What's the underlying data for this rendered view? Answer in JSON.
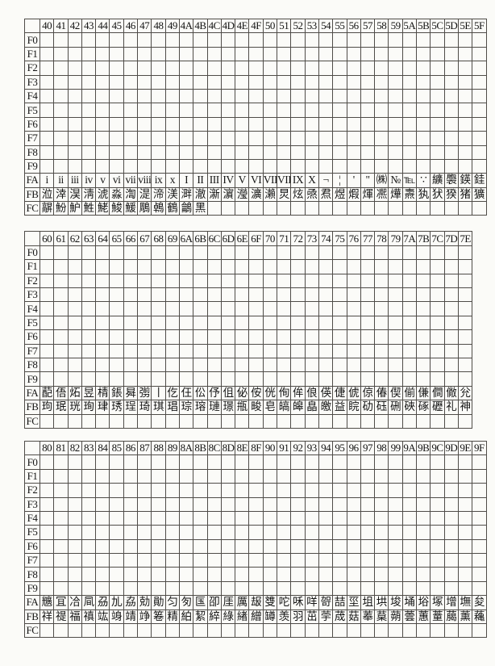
{
  "page": {
    "background": "#fbfbf8",
    "ink": "#1b1b1b",
    "grid_color": "#4f4c48",
    "description": "Shift-JIS IBM extended character code table, rows F0-FC"
  },
  "row_labels": [
    "F0",
    "F1",
    "F2",
    "F3",
    "F4",
    "F5",
    "F6",
    "F7",
    "F8",
    "F9",
    "FA",
    "FB",
    "FC"
  ],
  "tables": [
    {
      "name": "code-table-40-5F",
      "columns": [
        "40",
        "41",
        "42",
        "43",
        "44",
        "45",
        "46",
        "47",
        "48",
        "49",
        "4A",
        "4B",
        "4C",
        "4D",
        "4E",
        "4F",
        "50",
        "51",
        "52",
        "53",
        "54",
        "55",
        "56",
        "57",
        "58",
        "59",
        "5A",
        "5B",
        "5C",
        "5D",
        "5E",
        "5F"
      ],
      "filled": {
        "FA": [
          "i",
          "ii",
          "iii",
          "iv",
          "v",
          "vi",
          "vii",
          "viii",
          "ix",
          "x",
          "I",
          "II",
          "III",
          "IV",
          "V",
          "VI",
          "VII",
          "VIII",
          "IX",
          "X",
          "¬",
          "¦",
          "'",
          "\"",
          "㈱",
          "№",
          "℡",
          "∵",
          "纊",
          "褜",
          "鍈",
          "銈"
        ],
        "FB": [
          "涖",
          "涬",
          "淏",
          "淸",
          "淲",
          "淼",
          "渹",
          "湜",
          "渧",
          "渼",
          "溿",
          "澈",
          "澵",
          "濵",
          "瀅",
          "瀇",
          "瀨",
          "炅",
          "炫",
          "焏",
          "焄",
          "煜",
          "煆",
          "煇",
          "凞",
          "燁",
          "燾",
          "犱",
          "犾",
          "猤",
          "猪",
          "獷"
        ],
        "FC": [
          "髜",
          "魵",
          "魲",
          "鮏",
          "鮱",
          "鮻",
          "鰀",
          "鵰",
          "鵫",
          "鶴",
          "鸙",
          "黑"
        ]
      }
    },
    {
      "name": "code-table-60-7E",
      "columns": [
        "60",
        "61",
        "62",
        "63",
        "64",
        "65",
        "66",
        "67",
        "68",
        "69",
        "6A",
        "6B",
        "6C",
        "6D",
        "6E",
        "6F",
        "70",
        "71",
        "72",
        "73",
        "74",
        "75",
        "76",
        "77",
        "78",
        "79",
        "7A",
        "7B",
        "7C",
        "7D",
        "7E"
      ],
      "filled": {
        "FA": [
          "蓜",
          "俉",
          "炻",
          "昱",
          "棈",
          "鋹",
          "曻",
          "彅",
          "丨",
          "仡",
          "仼",
          "伀",
          "伃",
          "伹",
          "佖",
          "侒",
          "侊",
          "侚",
          "侔",
          "俍",
          "偀",
          "倢",
          "俿",
          "倞",
          "偆",
          "偰",
          "偂",
          "傔",
          "僴",
          "僘",
          "兊"
        ],
        "FB": [
          "玽",
          "珉",
          "珖",
          "珣",
          "珒",
          "琇",
          "珵",
          "琦",
          "琪",
          "琩",
          "琮",
          "瑢",
          "璉",
          "璟",
          "甁",
          "畯",
          "皂",
          "皜",
          "皞",
          "皛",
          "皦",
          "益",
          "睆",
          "劯",
          "砡",
          "硎",
          "硤",
          "硺",
          "礰",
          "礼",
          "神"
        ]
      }
    },
    {
      "name": "code-table-80-9F",
      "columns": [
        "80",
        "81",
        "82",
        "83",
        "84",
        "85",
        "86",
        "87",
        "88",
        "89",
        "8A",
        "8B",
        "8C",
        "8D",
        "8E",
        "8F",
        "90",
        "91",
        "92",
        "93",
        "94",
        "95",
        "96",
        "97",
        "98",
        "99",
        "9A",
        "9B",
        "9C",
        "9D",
        "9E",
        "9F"
      ],
      "filled": {
        "FA": [
          "兤",
          "冝",
          "冾",
          "凬",
          "刕",
          "劜",
          "劦",
          "勀",
          "勛",
          "匀",
          "匇",
          "匤",
          "卲",
          "厓",
          "厲",
          "叝",
          "﨎",
          "咜",
          "咊",
          "咩",
          "哿",
          "喆",
          "坙",
          "坥",
          "垬",
          "埈",
          "埇",
          "﨏",
          "塚",
          "增",
          "墲",
          "夋"
        ],
        "FB": [
          "祥",
          "禔",
          "福",
          "禛",
          "竑",
          "竧",
          "靖",
          "竫",
          "箞",
          "精",
          "絈",
          "絜",
          "綷",
          "綠",
          "緖",
          "繒",
          "罇",
          "羡",
          "羽",
          "茁",
          "荢",
          "荿",
          "菇",
          "菶",
          "葈",
          "蒴",
          "蕓",
          "蕙",
          "蕫",
          "﨟",
          "薰",
          "蘒"
        ]
      }
    }
  ]
}
